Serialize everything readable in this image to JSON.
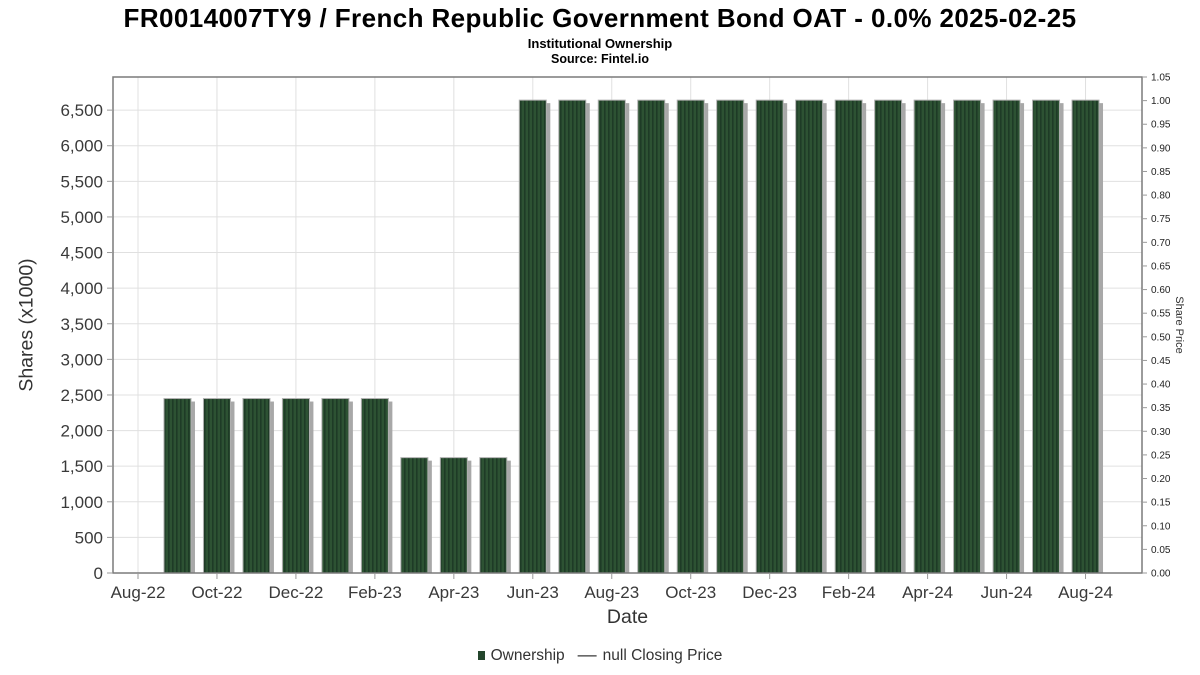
{
  "chart_data": {
    "type": "bar",
    "title": "FR0014007TY9 / French Republic Government Bond OAT - 0.0% 2025-02-25",
    "subtitle": "Institutional Ownership",
    "source_note": "Source: Fintel.io",
    "xlabel": "Date",
    "ylabel_left": "Shares (x1000)",
    "ylabel_right": "Share Price",
    "categories": [
      "Sep-22",
      "Oct-22",
      "Nov-22",
      "Dec-22",
      "Jan-23",
      "Feb-23",
      "Mar-23",
      "Apr-23",
      "May-23",
      "Jun-23",
      "Jul-23",
      "Aug-23",
      "Sep-23",
      "Oct-23",
      "Nov-23",
      "Dec-23",
      "Jan-24",
      "Feb-24",
      "Mar-24",
      "Apr-24",
      "May-24",
      "Jun-24",
      "Jul-24",
      "Aug-24"
    ],
    "series": [
      {
        "name": "Ownership",
        "type": "bar",
        "values": [
          2450,
          2450,
          2450,
          2450,
          2450,
          2450,
          1620,
          1620,
          1620,
          6640,
          6640,
          6640,
          6640,
          6640,
          6640,
          6640,
          6640,
          6640,
          6640,
          6640,
          6640,
          6640,
          6640,
          6640
        ]
      },
      {
        "name": "null Closing Price",
        "type": "line",
        "values": []
      }
    ],
    "x_tick_labels": [
      "Aug-22",
      "Oct-22",
      "Dec-22",
      "Feb-23",
      "Apr-23",
      "Jun-23",
      "Aug-23",
      "Oct-23",
      "Dec-23",
      "Feb-24",
      "Apr-24",
      "Jun-24",
      "Aug-24"
    ],
    "y_ticks_left": {
      "values": [
        0,
        500,
        1000,
        1500,
        2000,
        2500,
        3000,
        3500,
        4000,
        4500,
        5000,
        5500,
        6000,
        6500
      ],
      "labels": [
        "0",
        "500",
        "1,000",
        "1,500",
        "2,000",
        "2,500",
        "3,000",
        "3,500",
        "4,000",
        "4,500",
        "5,000",
        "5,500",
        "6,000",
        "6,500"
      ]
    },
    "y_ticks_right": {
      "values": [
        0,
        0.05,
        0.1,
        0.15,
        0.2,
        0.25,
        0.3,
        0.35,
        0.4,
        0.45,
        0.5,
        0.55,
        0.6,
        0.65,
        0.7,
        0.75,
        0.8,
        0.85,
        0.9,
        0.95,
        1.0,
        1.05
      ],
      "labels": [
        "0.00",
        "0.05",
        "0.10",
        "0.15",
        "0.20",
        "0.25",
        "0.30",
        "0.35",
        "0.40",
        "0.45",
        "0.50",
        "0.55",
        "0.60",
        "0.65",
        "0.70",
        "0.75",
        "0.80",
        "0.85",
        "0.90",
        "0.95",
        "1.00",
        "1.05"
      ]
    },
    "ylim_left": [
      0,
      6965
    ],
    "ylim_right": [
      0,
      1.05
    ],
    "grid": true,
    "legend_position": "bottom",
    "legend": {
      "dash_glyph": "—"
    },
    "colors": {
      "bar_fill": "#2d5233",
      "bar_hatch": "#1e3b26",
      "bar_edge": "#b0b0b0",
      "shadow": "#a8a8a8",
      "grid": "#e0e0e0",
      "axis_border": "#7a7a7a",
      "tick": "#999999",
      "tick_text": "#3a3a3a",
      "legend_swatch": "#24462c"
    }
  }
}
